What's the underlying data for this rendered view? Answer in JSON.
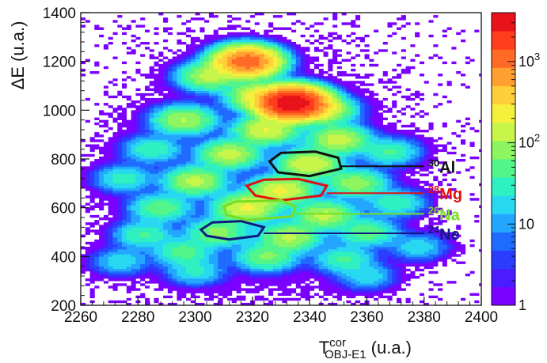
{
  "chart_data": {
    "type": "heatmap",
    "xlabel": {
      "main": "T",
      "sup": "cor",
      "sub": "OBJ-E1",
      "unit": " (u.a.)"
    },
    "ylabel": {
      "main": "ΔE",
      "unit": " (u.a.)"
    },
    "xlim": [
      2260,
      2400
    ],
    "ylim": [
      200,
      1400
    ],
    "xticks": [
      2260,
      2280,
      2300,
      2320,
      2340,
      2360,
      2380,
      2400
    ],
    "yticks": [
      200,
      400,
      600,
      800,
      1000,
      1200,
      1400
    ],
    "colorbar": {
      "scale": "log",
      "range": [
        1,
        4000
      ],
      "ticks": [
        {
          "value": 1,
          "label": "1"
        },
        {
          "value": 10,
          "label": "10"
        },
        {
          "value": 100,
          "label": "10",
          "sup": "2"
        },
        {
          "value": 1000,
          "label": "10",
          "sup": "3"
        }
      ],
      "colors": [
        "#7a00ff",
        "#4b1cff",
        "#2c3cff",
        "#1f6bff",
        "#22a6ff",
        "#28d8f0",
        "#2ef0c0",
        "#52f58a",
        "#8cf560",
        "#c8f54a",
        "#f5f03c",
        "#ffcf3a",
        "#ffa030",
        "#ff6a24",
        "#ff3c1c",
        "#e8121a"
      ]
    },
    "clusters": [
      {
        "x": 2318,
        "y": 1200,
        "peak": 1200
      },
      {
        "x": 2305,
        "y": 1140,
        "peak": 120
      },
      {
        "x": 2334,
        "y": 1030,
        "peak": 4000
      },
      {
        "x": 2322,
        "y": 1060,
        "peak": 180
      },
      {
        "x": 2345,
        "y": 1000,
        "peak": 140
      },
      {
        "x": 2296,
        "y": 960,
        "peak": 110
      },
      {
        "x": 2325,
        "y": 920,
        "peak": 180
      },
      {
        "x": 2350,
        "y": 880,
        "peak": 140
      },
      {
        "x": 2285,
        "y": 840,
        "peak": 35
      },
      {
        "x": 2312,
        "y": 820,
        "peak": 130
      },
      {
        "x": 2340,
        "y": 780,
        "peak": 180
      },
      {
        "x": 2368,
        "y": 830,
        "peak": 40
      },
      {
        "x": 2275,
        "y": 720,
        "peak": 30
      },
      {
        "x": 2300,
        "y": 710,
        "peak": 120
      },
      {
        "x": 2330,
        "y": 670,
        "peak": 200
      },
      {
        "x": 2356,
        "y": 700,
        "peak": 90
      },
      {
        "x": 2288,
        "y": 600,
        "peak": 60
      },
      {
        "x": 2318,
        "y": 600,
        "peak": 200
      },
      {
        "x": 2345,
        "y": 570,
        "peak": 120
      },
      {
        "x": 2370,
        "y": 620,
        "peak": 35
      },
      {
        "x": 2282,
        "y": 490,
        "peak": 40
      },
      {
        "x": 2308,
        "y": 500,
        "peak": 80
      },
      {
        "x": 2333,
        "y": 480,
        "peak": 120
      },
      {
        "x": 2360,
        "y": 500,
        "peak": 60
      },
      {
        "x": 2296,
        "y": 420,
        "peak": 50
      },
      {
        "x": 2325,
        "y": 400,
        "peak": 70
      },
      {
        "x": 2352,
        "y": 390,
        "peak": 40
      },
      {
        "x": 2378,
        "y": 440,
        "peak": 20
      },
      {
        "x": 2274,
        "y": 380,
        "peak": 20
      },
      {
        "x": 2300,
        "y": 340,
        "peak": 25
      },
      {
        "x": 2360,
        "y": 320,
        "peak": 20
      }
    ],
    "isotope_gates": [
      {
        "name": "Al",
        "mass": "30",
        "color": "#111111",
        "vertices": [
          [
            2326,
            790
          ],
          [
            2330,
            825
          ],
          [
            2342,
            830
          ],
          [
            2350,
            805
          ],
          [
            2351,
            760
          ],
          [
            2340,
            730
          ],
          [
            2329,
            745
          ]
        ],
        "line_to": [
          2380,
          770
        ]
      },
      {
        "name": "Mg",
        "mass": "28",
        "color": "#e01010",
        "vertices": [
          [
            2318,
            690
          ],
          [
            2324,
            715
          ],
          [
            2336,
            718
          ],
          [
            2346,
            690
          ],
          [
            2344,
            650
          ],
          [
            2330,
            630
          ],
          [
            2321,
            650
          ]
        ],
        "line_to": [
          2380,
          660
        ]
      },
      {
        "name": "Na",
        "mass": "26",
        "color": "#77dd22",
        "vertices": [
          [
            2310,
            605
          ],
          [
            2314,
            625
          ],
          [
            2330,
            630
          ],
          [
            2335,
            605
          ],
          [
            2334,
            565
          ],
          [
            2318,
            550
          ],
          [
            2311,
            570
          ]
        ],
        "line_to": [
          2380,
          575
        ]
      },
      {
        "name": "Ne",
        "mass": "24",
        "color": "#101a80",
        "vertices": [
          [
            2302,
            510
          ],
          [
            2306,
            540
          ],
          [
            2316,
            545
          ],
          [
            2324,
            520
          ],
          [
            2322,
            485
          ],
          [
            2312,
            470
          ],
          [
            2304,
            485
          ]
        ],
        "line_to": [
          2380,
          495
        ]
      }
    ]
  }
}
